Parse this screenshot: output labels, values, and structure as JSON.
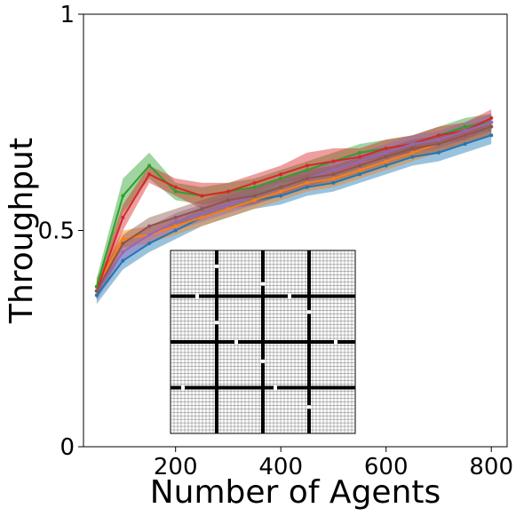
{
  "chart_data": {
    "type": "line",
    "xlabel": "Number of Agents",
    "ylabel": "Throughput",
    "xlim": [
      25,
      830
    ],
    "ylim": [
      0,
      1
    ],
    "xticks": [
      200,
      400,
      600,
      800
    ],
    "yticks": [
      0,
      0.5,
      1
    ],
    "ytick_labels": [
      "0",
      "0.5",
      "1"
    ],
    "grid": false,
    "legend": "none",
    "x": [
      50,
      100,
      150,
      200,
      250,
      300,
      350,
      400,
      450,
      500,
      550,
      600,
      650,
      700,
      750,
      800
    ],
    "series": [
      {
        "color": "#1f77b4",
        "values": [
          0.35,
          0.43,
          0.47,
          0.5,
          0.53,
          0.55,
          0.57,
          0.58,
          0.6,
          0.61,
          0.63,
          0.65,
          0.67,
          0.68,
          0.7,
          0.72
        ],
        "band": [
          0.02,
          0.02,
          0.02,
          0.02,
          0.02,
          0.02,
          0.02,
          0.02,
          0.02,
          0.02,
          0.02,
          0.02,
          0.02,
          0.02,
          0.02,
          0.02
        ]
      },
      {
        "color": "#ff7f0e",
        "values": [
          0.37,
          0.48,
          0.49,
          0.51,
          0.53,
          0.55,
          0.57,
          0.59,
          0.61,
          0.62,
          0.64,
          0.66,
          0.68,
          0.7,
          0.72,
          0.74
        ],
        "band": [
          0.02,
          0.02,
          0.02,
          0.02,
          0.02,
          0.02,
          0.02,
          0.02,
          0.02,
          0.02,
          0.02,
          0.02,
          0.02,
          0.02,
          0.02,
          0.02
        ]
      },
      {
        "color": "#2ca02c",
        "values": [
          0.37,
          0.58,
          0.65,
          0.59,
          0.58,
          0.59,
          0.6,
          0.62,
          0.64,
          0.66,
          0.68,
          0.69,
          0.7,
          0.72,
          0.74,
          0.75
        ],
        "band": [
          0.02,
          0.04,
          0.03,
          0.02,
          0.02,
          0.02,
          0.02,
          0.02,
          0.02,
          0.02,
          0.02,
          0.02,
          0.02,
          0.02,
          0.02,
          0.02
        ]
      },
      {
        "color": "#d62728",
        "values": [
          0.36,
          0.53,
          0.63,
          0.6,
          0.58,
          0.59,
          0.61,
          0.63,
          0.65,
          0.66,
          0.67,
          0.69,
          0.7,
          0.72,
          0.73,
          0.76
        ],
        "band": [
          0.02,
          0.03,
          0.02,
          0.02,
          0.03,
          0.02,
          0.02,
          0.02,
          0.03,
          0.03,
          0.02,
          0.02,
          0.02,
          0.02,
          0.02,
          0.02
        ]
      },
      {
        "color": "#9467bd",
        "values": [
          0.36,
          0.45,
          0.49,
          0.52,
          0.54,
          0.56,
          0.58,
          0.6,
          0.62,
          0.64,
          0.66,
          0.68,
          0.7,
          0.71,
          0.73,
          0.75
        ],
        "band": [
          0.02,
          0.02,
          0.02,
          0.02,
          0.02,
          0.02,
          0.02,
          0.02,
          0.02,
          0.02,
          0.02,
          0.02,
          0.02,
          0.02,
          0.02,
          0.02
        ]
      },
      {
        "color": "#8c564b",
        "values": [
          0.36,
          0.47,
          0.51,
          0.53,
          0.55,
          0.57,
          0.58,
          0.6,
          0.62,
          0.63,
          0.65,
          0.67,
          0.69,
          0.7,
          0.72,
          0.74
        ],
        "band": [
          0.02,
          0.02,
          0.02,
          0.02,
          0.02,
          0.02,
          0.02,
          0.02,
          0.02,
          0.02,
          0.02,
          0.02,
          0.02,
          0.02,
          0.02,
          0.02
        ]
      }
    ],
    "inset": {
      "description": "grid map",
      "cols": 52,
      "rows": 52,
      "wall_columns": [
        13,
        26,
        39
      ],
      "wall_rows": [
        13,
        26,
        39
      ],
      "wall_color": "#000000"
    }
  }
}
